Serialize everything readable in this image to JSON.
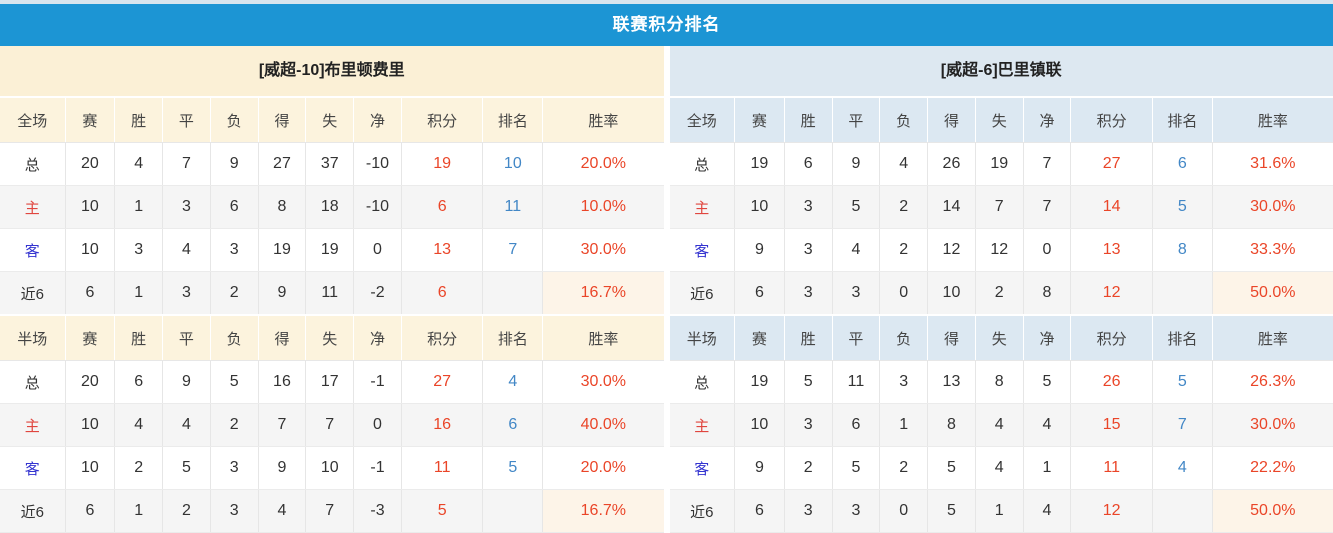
{
  "title": "联赛积分排名",
  "columns": {
    "full_label": "全场",
    "half_label": "半场",
    "stats": [
      "赛",
      "胜",
      "平",
      "负",
      "得",
      "失",
      "净",
      "积分",
      "排名",
      "胜率"
    ]
  },
  "teams": [
    {
      "name": "[威超-10]布里顿费里",
      "theme": "cream",
      "sections": [
        {
          "scope": "full",
          "rows": [
            {
              "type": "total",
              "label": "总",
              "stats": [
                "20",
                "4",
                "7",
                "9",
                "27",
                "37",
                "-10"
              ],
              "points": "19",
              "rank": "10",
              "rate": "20.0%"
            },
            {
              "type": "home",
              "label": "主",
              "stats": [
                "10",
                "1",
                "3",
                "6",
                "8",
                "18",
                "-10"
              ],
              "points": "6",
              "rank": "11",
              "rate": "10.0%"
            },
            {
              "type": "away",
              "label": "客",
              "stats": [
                "10",
                "3",
                "4",
                "3",
                "19",
                "19",
                "0"
              ],
              "points": "13",
              "rank": "7",
              "rate": "30.0%"
            },
            {
              "type": "recent",
              "label": "近6",
              "stats": [
                "6",
                "1",
                "3",
                "2",
                "9",
                "11",
                "-2"
              ],
              "points": "6",
              "rank": "",
              "rate": "16.7%"
            }
          ]
        },
        {
          "scope": "half",
          "rows": [
            {
              "type": "total",
              "label": "总",
              "stats": [
                "20",
                "6",
                "9",
                "5",
                "16",
                "17",
                "-1"
              ],
              "points": "27",
              "rank": "4",
              "rate": "30.0%"
            },
            {
              "type": "home",
              "label": "主",
              "stats": [
                "10",
                "4",
                "4",
                "2",
                "7",
                "7",
                "0"
              ],
              "points": "16",
              "rank": "6",
              "rate": "40.0%"
            },
            {
              "type": "away",
              "label": "客",
              "stats": [
                "10",
                "2",
                "5",
                "3",
                "9",
                "10",
                "-1"
              ],
              "points": "11",
              "rank": "5",
              "rate": "20.0%"
            },
            {
              "type": "recent",
              "label": "近6",
              "stats": [
                "6",
                "1",
                "2",
                "3",
                "4",
                "7",
                "-3"
              ],
              "points": "5",
              "rank": "",
              "rate": "16.7%"
            }
          ]
        }
      ]
    },
    {
      "name": "[威超-6]巴里镇联",
      "theme": "blue",
      "sections": [
        {
          "scope": "full",
          "rows": [
            {
              "type": "total",
              "label": "总",
              "stats": [
                "19",
                "6",
                "9",
                "4",
                "26",
                "19",
                "7"
              ],
              "points": "27",
              "rank": "6",
              "rate": "31.6%"
            },
            {
              "type": "home",
              "label": "主",
              "stats": [
                "10",
                "3",
                "5",
                "2",
                "14",
                "7",
                "7"
              ],
              "points": "14",
              "rank": "5",
              "rate": "30.0%"
            },
            {
              "type": "away",
              "label": "客",
              "stats": [
                "9",
                "3",
                "4",
                "2",
                "12",
                "12",
                "0"
              ],
              "points": "13",
              "rank": "8",
              "rate": "33.3%"
            },
            {
              "type": "recent",
              "label": "近6",
              "stats": [
                "6",
                "3",
                "3",
                "0",
                "10",
                "2",
                "8"
              ],
              "points": "12",
              "rank": "",
              "rate": "50.0%"
            }
          ]
        },
        {
          "scope": "half",
          "rows": [
            {
              "type": "total",
              "label": "总",
              "stats": [
                "19",
                "5",
                "11",
                "3",
                "13",
                "8",
                "5"
              ],
              "points": "26",
              "rank": "5",
              "rate": "26.3%"
            },
            {
              "type": "home",
              "label": "主",
              "stats": [
                "10",
                "3",
                "6",
                "1",
                "8",
                "4",
                "4"
              ],
              "points": "15",
              "rank": "7",
              "rate": "30.0%"
            },
            {
              "type": "away",
              "label": "客",
              "stats": [
                "9",
                "2",
                "5",
                "2",
                "5",
                "4",
                "1"
              ],
              "points": "11",
              "rank": "4",
              "rate": "22.2%"
            },
            {
              "type": "recent",
              "label": "近6",
              "stats": [
                "6",
                "3",
                "3",
                "0",
                "5",
                "1",
                "4"
              ],
              "points": "12",
              "rank": "",
              "rate": "50.0%"
            }
          ]
        }
      ]
    }
  ],
  "colors": {
    "header_bar": "#1c95d4",
    "cream_team_header": "#fbf0d6",
    "cream_column_header": "#fcf3dd",
    "blue_team_header": "#dde8f1",
    "blue_column_header": "#dce8f2",
    "row_stripe": "#f5f5f5",
    "recent_rate_highlight": "#fdf4e8",
    "points_red": "#ea4528",
    "rank_blue": "#4287c6",
    "home_label_red": "#e0463f",
    "away_label_blue": "#3434d0"
  }
}
